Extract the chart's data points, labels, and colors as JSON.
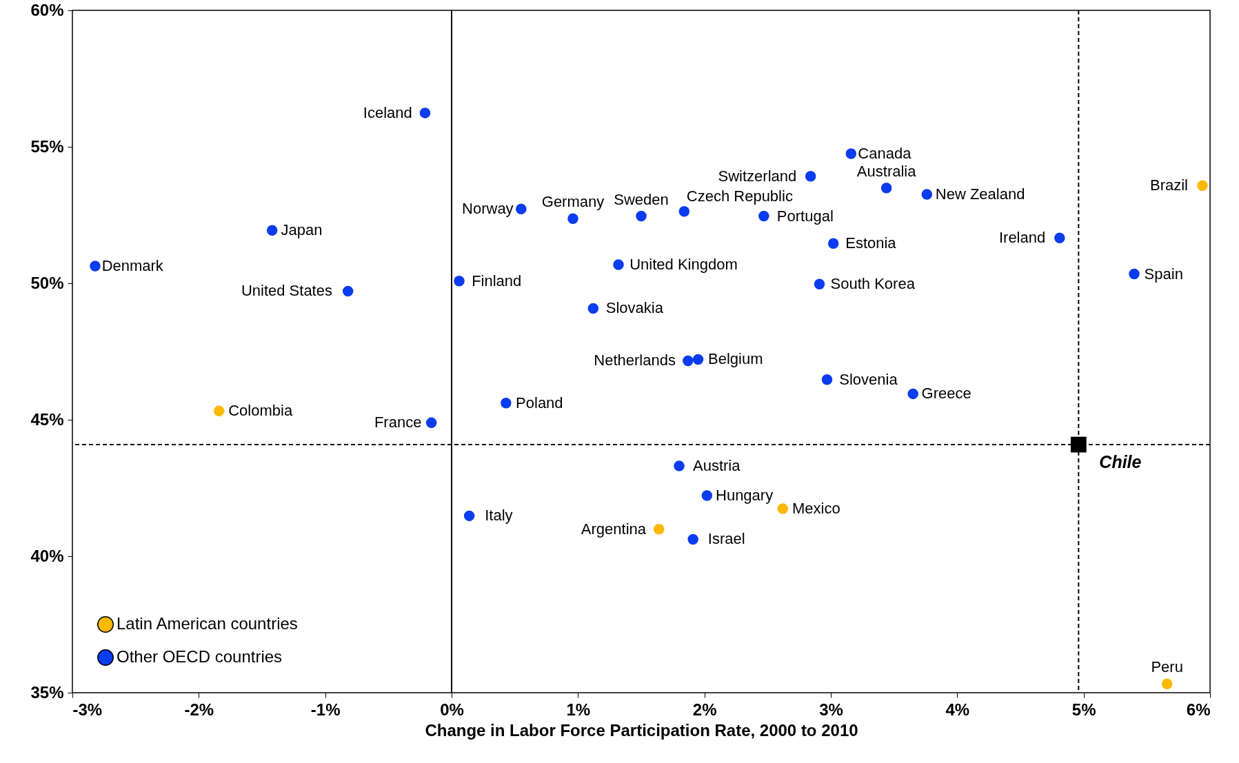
{
  "chart_data": {
    "type": "scatter",
    "xlabel": "Change in Labor Force Participation Rate, 2000 to 2010",
    "marker": "circle",
    "grid": false,
    "legend": "bottom left",
    "xlim": [
      -3,
      6
    ],
    "xticks": [
      {
        "value": -3,
        "label": "-3%"
      },
      {
        "value": -2,
        "label": "-2%"
      },
      {
        "value": -1,
        "label": "-1%"
      },
      {
        "value": 0,
        "label": "0%"
      },
      {
        "value": 1,
        "label": "1%"
      },
      {
        "value": 2,
        "label": "2%"
      },
      {
        "value": 3,
        "label": "3%"
      },
      {
        "value": 4,
        "label": "4%"
      },
      {
        "value": 5,
        "label": "5%"
      },
      {
        "value": 6,
        "label": "6%"
      }
    ],
    "ylim": [
      35,
      60
    ],
    "yticks": [
      {
        "value": 35,
        "label": "35%"
      },
      {
        "value": 40,
        "label": "40%"
      },
      {
        "value": 45,
        "label": "45%"
      },
      {
        "value": 50,
        "label": "50%"
      },
      {
        "value": 55,
        "label": "55%"
      },
      {
        "value": 60,
        "label": "60%"
      }
    ],
    "series": [
      {
        "name": "Latin American countries",
        "color": "#fbb901",
        "x": [
          -1.84,
          1.64,
          2.62,
          5.66,
          5.94
        ],
        "values": [
          45.32,
          40.99,
          41.74,
          35.32,
          53.58
        ]
      },
      {
        "name": "Other OECD countries",
        "color": "#0a3cf0",
        "x": [
          -0.21,
          -2.82,
          -1.42,
          -0.82,
          -0.16,
          0.55,
          0.96,
          0.06,
          1.5,
          1.32,
          1.12,
          1.84,
          2.84,
          3.16,
          3.44,
          3.76,
          2.47,
          3.02,
          2.91,
          4.81,
          5.4,
          1.95,
          1.87,
          2.97,
          3.65,
          0.43,
          1.8,
          2.02,
          0.14,
          1.91
        ],
        "values": [
          56.24,
          50.63,
          51.94,
          49.71,
          44.89,
          52.72,
          52.37,
          50.08,
          52.46,
          50.68,
          49.08,
          52.63,
          53.92,
          54.75,
          53.49,
          53.26,
          52.46,
          51.46,
          49.97,
          51.66,
          50.34,
          47.21,
          47.16,
          46.47,
          45.95,
          45.61,
          43.31,
          42.22,
          41.48,
          40.62
        ]
      },
      {
        "name": "Chile",
        "color": "#000000",
        "marker": "square",
        "x": [
          4.96
        ],
        "values": [
          44.09
        ]
      }
    ],
    "ref_lines": [
      {
        "axis": "x",
        "value": 0,
        "line_style": "solid"
      },
      {
        "axis": "x",
        "value": 4.96,
        "line_style": "dashed"
      },
      {
        "axis": "y",
        "value": 44.09,
        "line_style": "dashed"
      }
    ],
    "annotations": [
      {
        "text": "Iceland",
        "x": -0.21,
        "y": 56.24
      },
      {
        "text": "Denmark",
        "x": -2.82,
        "y": 50.63
      },
      {
        "text": "Japan",
        "x": -1.42,
        "y": 51.94
      },
      {
        "text": "United States",
        "x": -0.82,
        "y": 49.71
      },
      {
        "text": "Colombia",
        "x": -1.84,
        "y": 45.32
      },
      {
        "text": "France",
        "x": -0.16,
        "y": 44.89
      },
      {
        "text": "Norway",
        "x": 0.55,
        "y": 52.72
      },
      {
        "text": "Germany",
        "x": 0.96,
        "y": 52.37
      },
      {
        "text": "Finland",
        "x": 0.06,
        "y": 50.08
      },
      {
        "text": "Sweden",
        "x": 1.5,
        "y": 52.46
      },
      {
        "text": "United Kingdom",
        "x": 1.32,
        "y": 50.68
      },
      {
        "text": "Slovakia",
        "x": 1.12,
        "y": 49.08
      },
      {
        "text": "Czech Republic",
        "x": 1.84,
        "y": 52.63
      },
      {
        "text": "Switzerland",
        "x": 2.84,
        "y": 53.92
      },
      {
        "text": "Canada",
        "x": 3.16,
        "y": 54.75
      },
      {
        "text": "Australia",
        "x": 3.44,
        "y": 53.49
      },
      {
        "text": "New Zealand",
        "x": 3.76,
        "y": 53.26
      },
      {
        "text": "Portugal",
        "x": 2.47,
        "y": 52.46
      },
      {
        "text": "Estonia",
        "x": 3.02,
        "y": 51.46
      },
      {
        "text": "South Korea",
        "x": 2.91,
        "y": 49.97
      },
      {
        "text": "Ireland",
        "x": 4.81,
        "y": 51.66
      },
      {
        "text": "Brazil",
        "x": 5.94,
        "y": 53.58
      },
      {
        "text": "Spain",
        "x": 5.4,
        "y": 50.34
      },
      {
        "text": "Belgium",
        "x": 1.95,
        "y": 47.21
      },
      {
        "text": "Netherlands",
        "x": 1.87,
        "y": 47.16
      },
      {
        "text": "Slovenia",
        "x": 2.97,
        "y": 46.47
      },
      {
        "text": "Greece",
        "x": 3.65,
        "y": 45.95
      },
      {
        "text": "Poland",
        "x": 0.43,
        "y": 45.61
      },
      {
        "text": "Austria",
        "x": 1.8,
        "y": 43.31
      },
      {
        "text": "Hungary",
        "x": 2.02,
        "y": 42.22
      },
      {
        "text": "Mexico",
        "x": 2.62,
        "y": 41.74
      },
      {
        "text": "Italy",
        "x": 0.14,
        "y": 41.48
      },
      {
        "text": "Argentina",
        "x": 1.64,
        "y": 40.99
      },
      {
        "text": "Israel",
        "x": 1.91,
        "y": 40.62
      },
      {
        "text": "Peru",
        "x": 5.66,
        "y": 35.32
      }
    ]
  }
}
